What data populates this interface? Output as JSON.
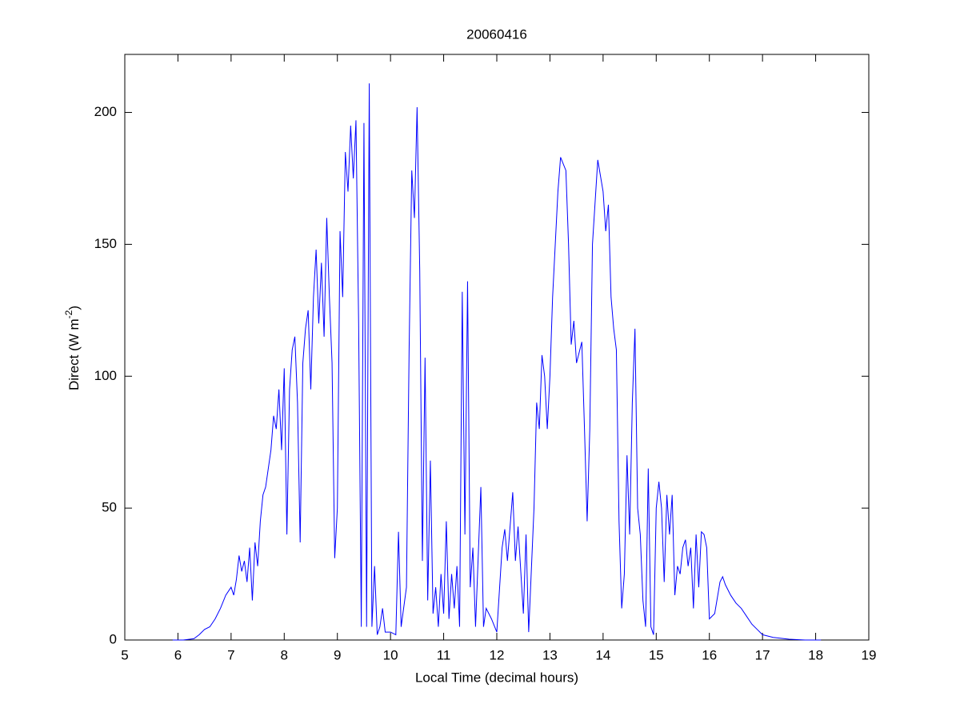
{
  "chart_data": {
    "type": "line",
    "title": "20060416",
    "xlabel": "Local Time (decimal hours)",
    "ylabel": {
      "text": "Direct (W m",
      "superscript": "-2",
      "suffix": ")"
    },
    "color": "#0000ff",
    "xlim": [
      5,
      19
    ],
    "xticks": [
      5,
      6,
      7,
      8,
      9,
      10,
      11,
      12,
      13,
      14,
      15,
      16,
      17,
      18,
      19
    ],
    "ylim": [
      0,
      222
    ],
    "yticks": [
      0,
      50,
      100,
      150,
      200
    ],
    "x": [
      5.9,
      6.1,
      6.3,
      6.4,
      6.5,
      6.6,
      6.7,
      6.8,
      6.9,
      7.0,
      7.05,
      7.1,
      7.15,
      7.2,
      7.25,
      7.3,
      7.35,
      7.4,
      7.45,
      7.5,
      7.55,
      7.6,
      7.65,
      7.7,
      7.75,
      7.8,
      7.85,
      7.9,
      7.95,
      8.0,
      8.05,
      8.1,
      8.15,
      8.2,
      8.25,
      8.3,
      8.35,
      8.4,
      8.45,
      8.5,
      8.55,
      8.6,
      8.65,
      8.7,
      8.75,
      8.8,
      8.85,
      8.9,
      8.95,
      9.0,
      9.05,
      9.1,
      9.15,
      9.2,
      9.25,
      9.3,
      9.35,
      9.4,
      9.45,
      9.5,
      9.55,
      9.6,
      9.65,
      9.7,
      9.75,
      9.8,
      9.85,
      9.9,
      10.0,
      10.1,
      10.15,
      10.2,
      10.3,
      10.35,
      10.4,
      10.45,
      10.5,
      10.55,
      10.6,
      10.65,
      10.7,
      10.75,
      10.8,
      10.85,
      10.9,
      10.95,
      11.0,
      11.05,
      11.1,
      11.15,
      11.2,
      11.25,
      11.3,
      11.35,
      11.4,
      11.45,
      11.5,
      11.55,
      11.6,
      11.7,
      11.75,
      11.8,
      11.9,
      12.0,
      12.1,
      12.15,
      12.2,
      12.3,
      12.35,
      12.4,
      12.5,
      12.55,
      12.6,
      12.7,
      12.75,
      12.8,
      12.85,
      12.9,
      12.95,
      13.0,
      13.05,
      13.1,
      13.15,
      13.2,
      13.3,
      13.35,
      13.4,
      13.45,
      13.5,
      13.6,
      13.65,
      13.7,
      13.75,
      13.8,
      13.9,
      14.0,
      14.05,
      14.1,
      14.15,
      14.2,
      14.25,
      14.3,
      14.35,
      14.4,
      14.45,
      14.5,
      14.55,
      14.6,
      14.65,
      14.7,
      14.75,
      14.8,
      14.85,
      14.9,
      14.95,
      15.0,
      15.05,
      15.1,
      15.15,
      15.2,
      15.25,
      15.3,
      15.35,
      15.4,
      15.45,
      15.5,
      15.55,
      15.6,
      15.65,
      15.7,
      15.75,
      15.8,
      15.85,
      15.9,
      15.95,
      16.0,
      16.1,
      16.2,
      16.25,
      16.3,
      16.4,
      16.5,
      16.6,
      16.7,
      16.8,
      16.9,
      17.0,
      17.2,
      17.5,
      17.8,
      18.1
    ],
    "values": [
      0,
      0,
      0.5,
      2,
      4,
      5,
      8,
      12,
      17,
      20,
      17,
      23,
      32,
      26,
      30,
      22,
      35,
      15,
      37,
      28,
      45,
      55,
      58,
      65,
      72,
      85,
      80,
      95,
      72,
      103,
      40,
      95,
      110,
      115,
      90,
      37,
      105,
      118,
      125,
      95,
      130,
      148,
      120,
      143,
      115,
      160,
      130,
      105,
      31,
      50,
      155,
      130,
      185,
      170,
      195,
      175,
      197,
      120,
      5,
      196,
      5,
      211,
      5,
      28,
      2,
      5,
      12,
      3,
      3,
      2,
      41,
      5,
      20,
      110,
      178,
      160,
      202,
      140,
      30,
      107,
      15,
      68,
      10,
      20,
      5,
      25,
      10,
      45,
      8,
      25,
      12,
      28,
      5,
      132,
      40,
      136,
      20,
      35,
      5,
      58,
      5,
      12,
      8,
      3,
      35,
      42,
      30,
      56,
      30,
      43,
      10,
      40,
      3,
      50,
      90,
      80,
      108,
      100,
      80,
      100,
      130,
      150,
      170,
      183,
      178,
      150,
      112,
      121,
      105,
      113,
      80,
      45,
      80,
      150,
      182,
      170,
      155,
      165,
      130,
      118,
      110,
      45,
      12,
      25,
      70,
      40,
      90,
      118,
      50,
      40,
      15,
      5,
      65,
      5,
      2,
      50,
      60,
      50,
      22,
      55,
      40,
      55,
      17,
      28,
      25,
      35,
      38,
      28,
      35,
      12,
      40,
      20,
      41,
      40,
      35,
      8,
      10,
      22,
      24,
      21,
      17,
      14,
      12,
      9,
      6,
      4,
      2,
      1,
      0.3,
      0,
      0
    ]
  }
}
